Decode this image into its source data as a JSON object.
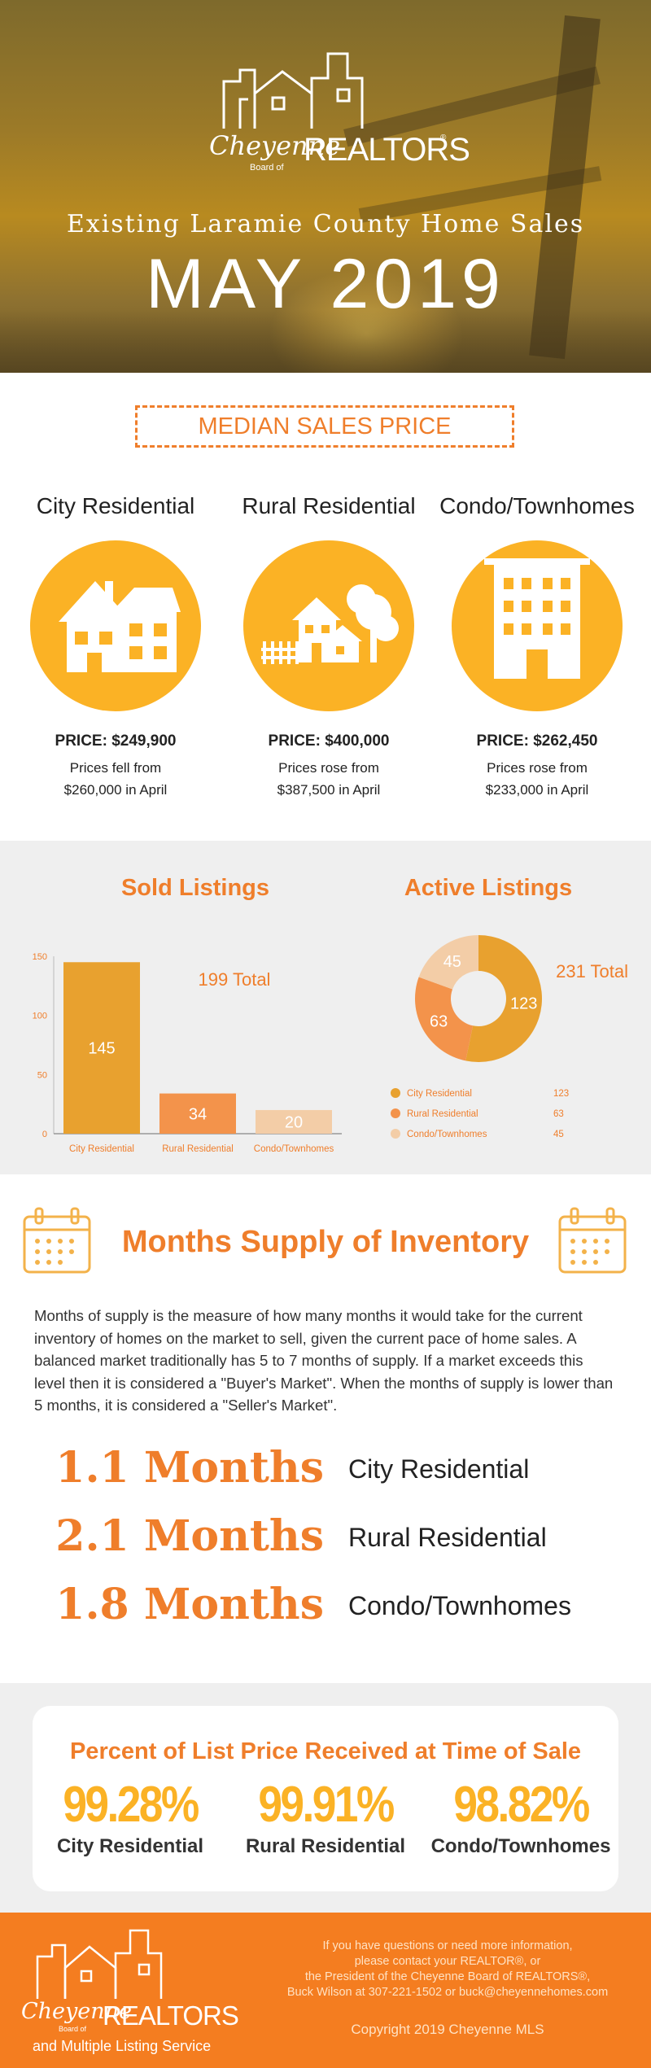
{
  "header": {
    "logo": {
      "script": "Cheyenne",
      "board": "Board of",
      "brand": "REALTORS",
      "reg": "®"
    },
    "title": "Existing Laramie County Home Sales",
    "month": "MAY 2019"
  },
  "median": {
    "heading": "MEDIAN SALES PRICE",
    "columns": [
      {
        "label": "City Residential",
        "price": "PRICE: $249,900",
        "note1": "Prices fell from",
        "note2": "$260,000 in April",
        "icon": "house-icon"
      },
      {
        "label": "Rural Residential",
        "price": "PRICE: $400,000",
        "note1": "Prices rose from",
        "note2": "$387,500 in April",
        "icon": "farm-house-icon"
      },
      {
        "label": "Condo/Townhomes",
        "price": "PRICE: $262,450",
        "note1": "Prices rose from",
        "note2": "$233,000 in April",
        "icon": "apartment-building-icon"
      }
    ]
  },
  "listings": {
    "sold_title": "Sold Listings",
    "active_title": "Active Listings",
    "sold_total": "199 Total",
    "active_total": "231 Total"
  },
  "chart_data": [
    {
      "type": "bar",
      "title": "Sold Listings",
      "categories": [
        "City Residential",
        "Rural Residential",
        "Condo/Townhomes"
      ],
      "values": [
        145,
        34,
        20
      ],
      "yticks": [
        0,
        50,
        100,
        150
      ],
      "ylim": [
        0,
        150
      ],
      "colors": [
        "#e8a12f",
        "#f3934b",
        "#f3cda7"
      ],
      "annotation": "199 Total"
    },
    {
      "type": "pie",
      "title": "Active Listings",
      "labels": [
        "City Residential",
        "Rural Residential",
        "Condo/Townhomes"
      ],
      "values": [
        123,
        63,
        45
      ],
      "colors": [
        "#e8a12f",
        "#f3934b",
        "#f3cda7"
      ],
      "legend": "bottom",
      "annotation": "231 Total"
    }
  ],
  "months": {
    "title": "Months Supply of Inventory",
    "text": "Months of supply is the measure of how many months it would take for the current inventory of homes on the market to sell,  given the current pace of home sales. A balanced market traditionally has 5 to 7 months of supply. If a market exceeds this level then it is considered a \"Buyer's Market\". When the months of supply is lower than 5 months, it is considered a \"Seller's Market\".",
    "rows": [
      {
        "value": "1.1 Months",
        "label": "City Residential"
      },
      {
        "value": "2.1 Months",
        "label": "Rural Residential"
      },
      {
        "value": "1.8 Months",
        "label": "Condo/Townhomes"
      }
    ]
  },
  "percent": {
    "title": "Percent of List Price Received at Time of Sale",
    "items": [
      {
        "value": "99.28%",
        "label": "City Residential"
      },
      {
        "value": "99.91%",
        "label": "Rural Residential"
      },
      {
        "value": "98.82%",
        "label": "Condo/Townhomes"
      }
    ]
  },
  "footer": {
    "logo": {
      "script": "Cheyenne",
      "board": "Board of",
      "brand": "REALTORS",
      "sub": "and Multiple Listing Service"
    },
    "contact": [
      "If you have questions or need more information,",
      "please contact your REALTOR®, or",
      "the President of the Cheyenne Board of REALTORS®,",
      "Buck Wilson at 307-221-1502 or buck@cheyennehomes.com"
    ],
    "copyright": "Copyright 2019 Cheyenne MLS"
  },
  "colors": {
    "accent": "#ef7e2b",
    "gold": "#fbb225",
    "footer": "#f47d20"
  }
}
